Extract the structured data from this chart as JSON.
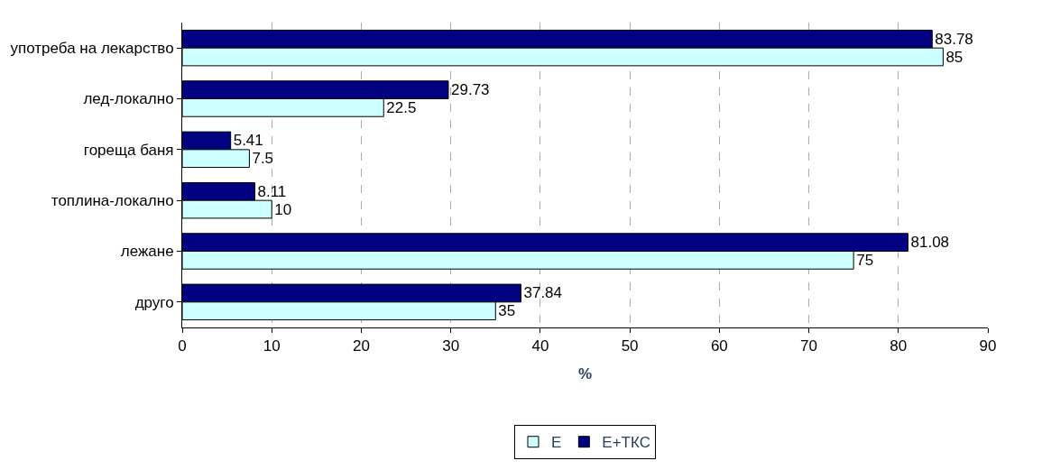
{
  "chart_data": {
    "type": "bar",
    "orientation": "horizontal",
    "xlabel": "%",
    "categories": [
      "употреба на лекарство",
      "лед-локално",
      "гореща баня",
      "топлина-локално",
      "лежане",
      "друго"
    ],
    "series": [
      {
        "name": "Е",
        "color": "#ccffff",
        "values": [
          85,
          22.5,
          7.5,
          10,
          75,
          35
        ]
      },
      {
        "name": "Е+ТКС",
        "color": "#000080",
        "values": [
          83.78,
          29.73,
          5.41,
          8.11,
          81.08,
          37.84
        ]
      }
    ],
    "xlim": [
      0,
      90
    ],
    "xticks": [
      0,
      10,
      20,
      30,
      40,
      50,
      60,
      70,
      80,
      90
    ],
    "grid": "x",
    "legend": "bottom",
    "data_labels": true
  }
}
